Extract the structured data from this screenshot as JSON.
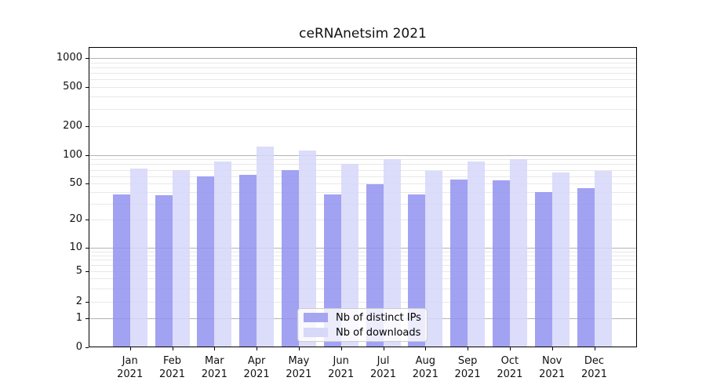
{
  "chart_data": {
    "type": "bar",
    "title": "ceRNAnetsim 2021",
    "categories": [
      "Jan",
      "Feb",
      "Mar",
      "Apr",
      "May",
      "Jun",
      "Jul",
      "Aug",
      "Sep",
      "Oct",
      "Nov",
      "Dec"
    ],
    "category_year": "2021",
    "series": [
      {
        "name": "Nb of distinct IPs",
        "values": [
          38,
          37,
          60,
          62,
          70,
          38,
          49,
          38,
          55,
          54,
          40,
          45
        ]
      },
      {
        "name": "Nb of downloads",
        "values": [
          72,
          69,
          86,
          122,
          111,
          80,
          90,
          68,
          86,
          91,
          65,
          68
        ]
      }
    ],
    "yticks": [
      1000,
      500,
      200,
      100,
      50,
      20,
      10,
      5,
      2,
      1,
      0
    ],
    "yscale": "log-like with zero baseline",
    "ylim": [
      0,
      1450
    ],
    "grid": "horizontal, log minor lines on",
    "legend_position": "inside bottom center"
  },
  "colors": {
    "ip_bar": "rgba(146,146,240,0.85)",
    "dl_bar": "rgba(214,214,250,0.85)",
    "ip_swatch": "#a5a5f0",
    "dl_swatch": "#d8d8f8",
    "major_grid": "#b3b3b3",
    "minor_grid": "#e8e8e8"
  }
}
